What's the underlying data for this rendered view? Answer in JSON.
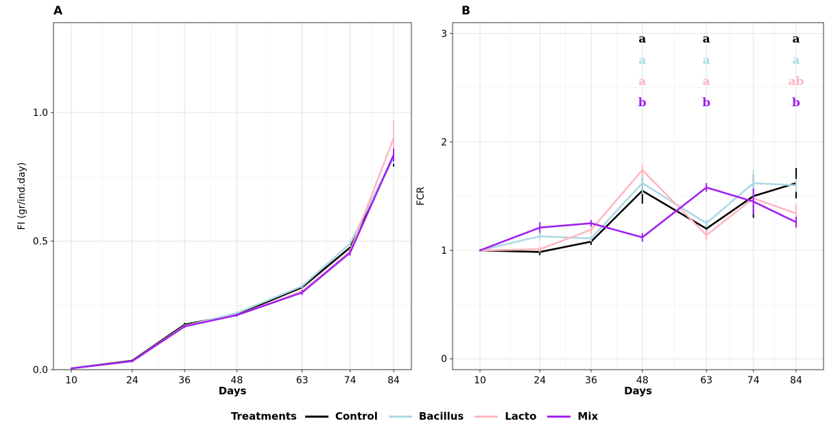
{
  "legend": {
    "title": "Treatments",
    "items": [
      {
        "name": "Control",
        "color": "#000000"
      },
      {
        "name": "Bacillus",
        "color": "#add8e6"
      },
      {
        "name": "Lacto",
        "color": "#ffb6c1"
      },
      {
        "name": "Mix",
        "color": "#a020f0"
      }
    ]
  },
  "chart_data": [
    {
      "type": "line",
      "panel": "A",
      "xlabel": "Days",
      "ylabel": "FI (gr/ind.day)",
      "x": [
        10,
        24,
        36,
        48,
        63,
        74,
        84
      ],
      "xlim": [
        10,
        84
      ],
      "ylim": [
        0,
        1.35
      ],
      "yticks": [
        0.0,
        0.5,
        1.0
      ],
      "ytick_labels": [
        "0.0",
        "0.5",
        "1.0"
      ],
      "grid": true,
      "series": [
        {
          "name": "Control",
          "color": "#000000",
          "values": [
            0.005,
            0.035,
            0.175,
            0.215,
            0.32,
            0.475,
            0.83
          ],
          "err": [
            0.003,
            0.004,
            0.007,
            0.006,
            0.01,
            0.015,
            0.04
          ]
        },
        {
          "name": "Bacillus",
          "color": "#add8e6",
          "values": [
            0.005,
            0.033,
            0.17,
            0.22,
            0.325,
            0.49,
            0.83
          ],
          "err": [
            0.003,
            0.004,
            0.006,
            0.006,
            0.01,
            0.012,
            0.03
          ]
        },
        {
          "name": "Lacto",
          "color": "#ffb6c1",
          "values": [
            0.005,
            0.033,
            0.17,
            0.212,
            0.305,
            0.46,
            0.9
          ],
          "err": [
            0.003,
            0.004,
            0.006,
            0.006,
            0.01,
            0.012,
            0.07
          ]
        },
        {
          "name": "Mix",
          "color": "#a020f0",
          "values": [
            0.005,
            0.033,
            0.168,
            0.212,
            0.3,
            0.455,
            0.835
          ],
          "err": [
            0.003,
            0.004,
            0.006,
            0.006,
            0.01,
            0.012,
            0.025
          ]
        }
      ]
    },
    {
      "type": "line",
      "panel": "B",
      "xlabel": "Days",
      "ylabel": "FCR",
      "x": [
        10,
        24,
        36,
        48,
        63,
        74,
        84
      ],
      "xlim": [
        10,
        84
      ],
      "ylim": [
        -0.1,
        3.1
      ],
      "yticks": [
        0,
        1,
        2,
        3
      ],
      "ytick_labels": [
        "0",
        "1",
        "2",
        "3"
      ],
      "grid": true,
      "series": [
        {
          "name": "Control",
          "color": "#000000",
          "values": [
            1.0,
            0.985,
            1.08,
            1.55,
            1.2,
            1.5,
            1.62
          ],
          "err": [
            0.01,
            0.03,
            0.03,
            0.12,
            0.04,
            0.2,
            0.14
          ]
        },
        {
          "name": "Bacillus",
          "color": "#add8e6",
          "values": [
            1.0,
            1.13,
            1.11,
            1.62,
            1.25,
            1.62,
            1.6
          ],
          "err": [
            0.01,
            0.03,
            0.03,
            0.1,
            0.04,
            0.12,
            0.06
          ]
        },
        {
          "name": "Lacto",
          "color": "#ffb6c1",
          "values": [
            1.0,
            1.01,
            1.19,
            1.74,
            1.14,
            1.48,
            1.34
          ],
          "err": [
            0.01,
            0.03,
            0.04,
            0.05,
            0.05,
            0.06,
            0.08
          ]
        },
        {
          "name": "Mix",
          "color": "#a020f0",
          "values": [
            1.0,
            1.21,
            1.25,
            1.12,
            1.58,
            1.45,
            1.26
          ],
          "err": [
            0.01,
            0.05,
            0.03,
            0.04,
            0.04,
            0.12,
            0.05
          ]
        }
      ],
      "annotations": [
        {
          "x": 48,
          "labels": [
            "a",
            "a",
            "a",
            "b"
          ]
        },
        {
          "x": 63,
          "labels": [
            "a",
            "a",
            "a",
            "b"
          ]
        },
        {
          "x": 84,
          "labels": [
            "a",
            "a",
            "ab",
            "b"
          ]
        }
      ]
    }
  ]
}
